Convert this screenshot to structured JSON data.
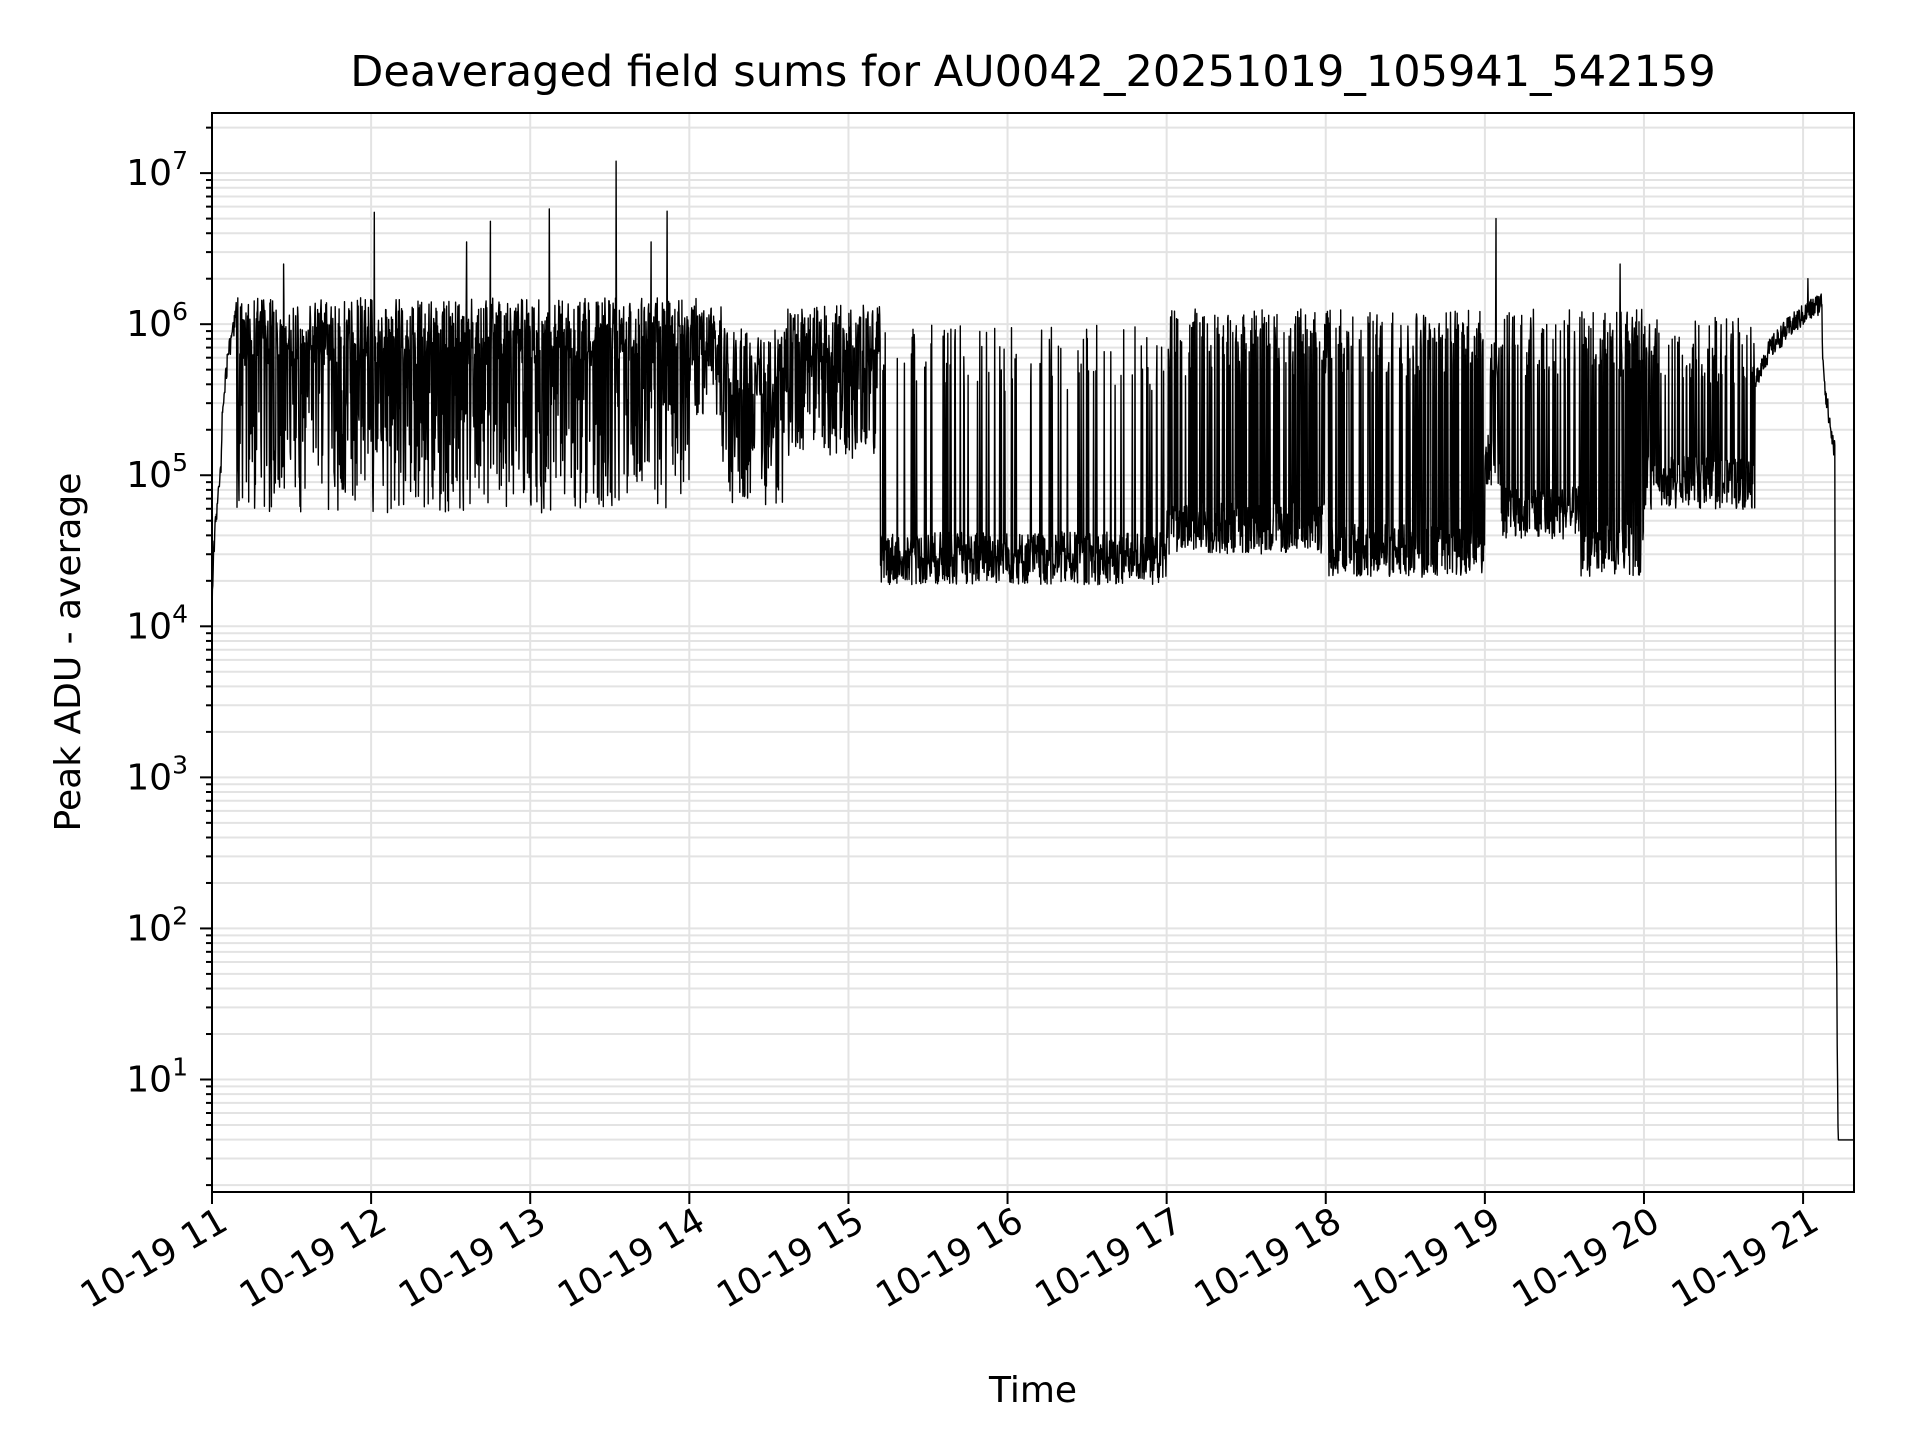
{
  "chart_data": {
    "type": "line",
    "title": "Deaveraged field sums for AU0042_20251019_105941_542159",
    "xlabel": "Time",
    "ylabel": "Peak ADU - average",
    "yscale": "log",
    "ylim": [
      1.8,
      25000000
    ],
    "xlim_hours": [
      11.0,
      21.32
    ],
    "grid": "both (major and minor on y)",
    "x_ticks": [
      {
        "hour": 11,
        "label": "10-19 11"
      },
      {
        "hour": 12,
        "label": "10-19 12"
      },
      {
        "hour": 13,
        "label": "10-19 13"
      },
      {
        "hour": 14,
        "label": "10-19 14"
      },
      {
        "hour": 15,
        "label": "10-19 15"
      },
      {
        "hour": 16,
        "label": "10-19 16"
      },
      {
        "hour": 17,
        "label": "10-19 17"
      },
      {
        "hour": 18,
        "label": "10-19 18"
      },
      {
        "hour": 19,
        "label": "10-19 19"
      },
      {
        "hour": 20,
        "label": "10-19 20"
      },
      {
        "hour": 21,
        "label": "10-19 21"
      }
    ],
    "y_ticks": [
      {
        "exp": 1,
        "base": "10",
        "sup": "1"
      },
      {
        "exp": 2,
        "base": "10",
        "sup": "2"
      },
      {
        "exp": 3,
        "base": "10",
        "sup": "3"
      },
      {
        "exp": 4,
        "base": "10",
        "sup": "4"
      },
      {
        "exp": 5,
        "base": "10",
        "sup": "5"
      },
      {
        "exp": 6,
        "base": "10",
        "sup": "6"
      },
      {
        "exp": 7,
        "base": "10",
        "sup": "7"
      }
    ],
    "series": [
      {
        "name": "field sums",
        "color": "#000000",
        "segments": [
          {
            "start": 11.0,
            "end": 11.06,
            "shape": "ramp",
            "from": 4.0,
            "to": 5.1
          },
          {
            "start": 11.06,
            "end": 11.15,
            "shape": "ramp",
            "from": 5.2,
            "to": 6.05
          },
          {
            "start": 11.15,
            "end": 14.0,
            "base": 5.95,
            "low": 4.75,
            "dip_prob": 0.38
          },
          {
            "start": 14.0,
            "end": 14.2,
            "base": 5.95,
            "low": 5.4,
            "dip_prob": 0.3
          },
          {
            "start": 14.2,
            "end": 14.6,
            "base": 5.75,
            "low": 4.8,
            "dip_prob": 0.45
          },
          {
            "start": 14.6,
            "end": 15.2,
            "base": 5.9,
            "low": 5.1,
            "dip_prob": 0.35
          },
          {
            "start": 15.2,
            "end": 17.0,
            "base": 4.45,
            "low": 4.35,
            "spike_to": 6.0,
            "spike_prob": 0.13,
            "mode": "low"
          },
          {
            "start": 17.0,
            "end": 18.0,
            "base": 4.65,
            "low": 4.5,
            "spike_to": 6.1,
            "spike_prob": 0.3,
            "mode": "low"
          },
          {
            "start": 18.0,
            "end": 19.0,
            "base": 4.5,
            "low": 4.4,
            "spike_to": 6.1,
            "spike_prob": 0.3,
            "mode": "low"
          },
          {
            "start": 19.0,
            "end": 19.1,
            "base": 5.1,
            "low": 5.0,
            "spike_to": 6.05,
            "spike_prob": 0.3,
            "mode": "low"
          },
          {
            "start": 19.1,
            "end": 19.6,
            "base": 4.75,
            "low": 4.65,
            "spike_to": 6.1,
            "spike_prob": 0.28,
            "mode": "low"
          },
          {
            "start": 19.6,
            "end": 20.0,
            "base": 4.5,
            "low": 4.4,
            "spike_to": 6.1,
            "spike_prob": 0.42,
            "mode": "low"
          },
          {
            "start": 20.0,
            "end": 20.7,
            "base": 4.95,
            "low": 4.85,
            "spike_to": 6.05,
            "spike_prob": 0.25,
            "mode": "low"
          },
          {
            "start": 20.7,
            "end": 21.12,
            "shape": "ramp",
            "from": 5.55,
            "to": 6.15
          },
          {
            "start": 21.12,
            "end": 21.2,
            "shape": "ramp",
            "from": 6.0,
            "to": 5.15
          },
          {
            "start": 21.2,
            "end": 21.22,
            "shape": "ramp",
            "from": 5.15,
            "to": 0.6
          },
          {
            "start": 21.22,
            "end": 21.32,
            "shape": "flat",
            "from": 0.6,
            "to": 0.6
          }
        ],
        "spikes": [
          {
            "hour": 11.45,
            "value": 2500000
          },
          {
            "hour": 12.02,
            "value": 5500000
          },
          {
            "hour": 12.6,
            "value": 3500000
          },
          {
            "hour": 12.75,
            "value": 4800000
          },
          {
            "hour": 13.12,
            "value": 5800000
          },
          {
            "hour": 13.54,
            "value": 12000000
          },
          {
            "hour": 13.76,
            "value": 3500000
          },
          {
            "hour": 13.86,
            "value": 5600000
          },
          {
            "hour": 19.07,
            "value": 5000000
          },
          {
            "hour": 19.85,
            "value": 2500000
          },
          {
            "hour": 21.03,
            "value": 2000000
          }
        ]
      }
    ]
  }
}
